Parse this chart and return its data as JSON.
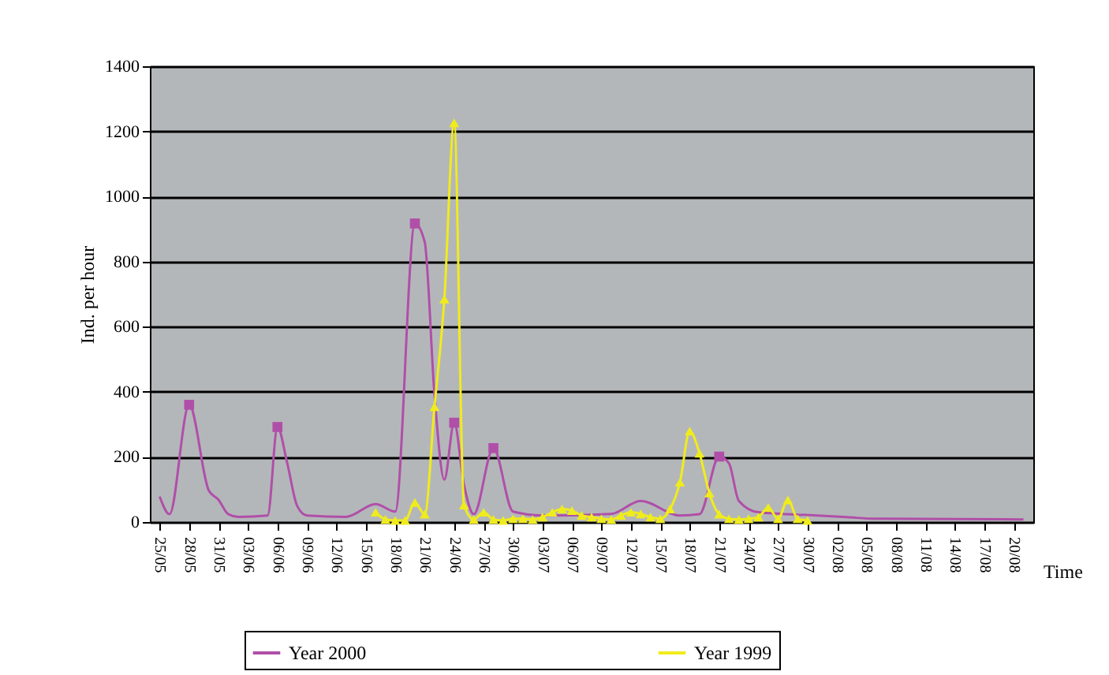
{
  "chart_data": {
    "type": "line",
    "xlabel": "Time",
    "ylabel": "Ind. per hour",
    "xlim": [
      "--05-24",
      "--08-22"
    ],
    "xticks": [
      {
        "value": "--05-25",
        "label": "25/05"
      },
      {
        "value": "--05-28",
        "label": "28/05"
      },
      {
        "value": "--05-31",
        "label": "31/05"
      },
      {
        "value": "--06-03",
        "label": "03/06"
      },
      {
        "value": "--06-06",
        "label": "06/06"
      },
      {
        "value": "--06-09",
        "label": "09/06"
      },
      {
        "value": "--06-12",
        "label": "12/06"
      },
      {
        "value": "--06-15",
        "label": "15/06"
      },
      {
        "value": "--06-18",
        "label": "18/06"
      },
      {
        "value": "--06-21",
        "label": "21/06"
      },
      {
        "value": "--06-24",
        "label": "24/06"
      },
      {
        "value": "--06-27",
        "label": "27/06"
      },
      {
        "value": "--06-30",
        "label": "30/06"
      },
      {
        "value": "--07-03",
        "label": "03/07"
      },
      {
        "value": "--07-06",
        "label": "06/07"
      },
      {
        "value": "--07-09",
        "label": "09/07"
      },
      {
        "value": "--07-12",
        "label": "12/07"
      },
      {
        "value": "--07-15",
        "label": "15/07"
      },
      {
        "value": "--07-18",
        "label": "18/07"
      },
      {
        "value": "--07-21",
        "label": "21/07"
      },
      {
        "value": "--07-24",
        "label": "24/07"
      },
      {
        "value": "--07-27",
        "label": "27/07"
      },
      {
        "value": "--07-30",
        "label": "30/07"
      },
      {
        "value": "--08-02",
        "label": "02/08"
      },
      {
        "value": "--08-05",
        "label": "05/08"
      },
      {
        "value": "--08-08",
        "label": "08/08"
      },
      {
        "value": "--08-11",
        "label": "11/08"
      },
      {
        "value": "--08-14",
        "label": "14/08"
      },
      {
        "value": "--08-17",
        "label": "17/08"
      },
      {
        "value": "--08-20",
        "label": "20/08"
      }
    ],
    "ylim": [
      0,
      1400
    ],
    "yticks": [
      0,
      200,
      400,
      600,
      800,
      1000,
      1200,
      1400
    ],
    "grid": "y",
    "legend": "bottom",
    "series": [
      {
        "name": "Year 2000",
        "marker": "none",
        "color": "#b04fa8",
        "x": [
          "--05-25",
          "--05-26",
          "--05-28",
          "--05-30",
          "--05-31",
          "--06-01",
          "--06-02",
          "--06-05",
          "--06-06",
          "--06-07",
          "--06-08",
          "--06-09",
          "--06-13",
          "--06-16",
          "--06-18",
          "--06-20",
          "--06-21",
          "--06-22",
          "--06-23",
          "--06-24",
          "--06-25",
          "--06-26",
          "--06-28",
          "--06-30",
          "--07-03",
          "--07-10",
          "--07-13",
          "--07-17",
          "--07-19",
          "--07-21",
          "--07-22",
          "--07-23",
          "--07-25",
          "--07-31",
          "--08-03",
          "--08-06",
          "--08-21"
        ],
        "values": [
          78,
          24,
          360,
          97,
          68,
          24,
          16,
          20,
          292,
          180,
          50,
          20,
          16,
          55,
          32,
          917,
          860,
          390,
          130,
          305,
          114,
          24,
          227,
          32,
          20,
          25,
          65,
          20,
          24,
          201,
          180,
          65,
          30,
          20,
          15,
          10,
          8
        ]
      },
      {
        "name": "Year 1999",
        "marker": "triangle",
        "color": "#f0ec1c",
        "x": [
          "--06-16",
          "--06-17",
          "--06-18",
          "--06-19",
          "--06-20",
          "--06-21",
          "--06-22",
          "--06-23",
          "--06-24",
          "--06-25",
          "--06-26",
          "--06-27",
          "--06-28",
          "--06-29",
          "--06-30",
          "--07-01",
          "--07-02",
          "--07-03",
          "--07-04",
          "--07-05",
          "--07-06",
          "--07-07",
          "--07-08",
          "--07-09",
          "--07-10",
          "--07-11",
          "--07-12",
          "--07-13",
          "--07-14",
          "--07-15",
          "--07-16",
          "--07-17",
          "--07-18",
          "--07-19",
          "--07-20",
          "--07-21",
          "--07-22",
          "--07-23",
          "--07-24",
          "--07-25",
          "--07-26",
          "--07-27",
          "--07-28",
          "--07-29",
          "--07-30"
        ],
        "values": [
          30,
          8,
          5,
          5,
          60,
          24,
          354,
          685,
          1226,
          52,
          8,
          30,
          8,
          5,
          10,
          10,
          8,
          15,
          30,
          40,
          35,
          20,
          15,
          10,
          8,
          20,
          30,
          25,
          15,
          10,
          40,
          122,
          279,
          211,
          89,
          24,
          10,
          8,
          10,
          15,
          45,
          10,
          68,
          10,
          5
        ]
      },
      {
        "type": "scatter",
        "marker": "square",
        "color": "#b04fa8",
        "x": [
          "--05-28",
          "--06-06",
          "--06-20",
          "--06-24",
          "--06-28",
          "--07-21"
        ],
        "values": [
          360,
          292,
          917,
          305,
          227,
          201
        ]
      }
    ]
  }
}
